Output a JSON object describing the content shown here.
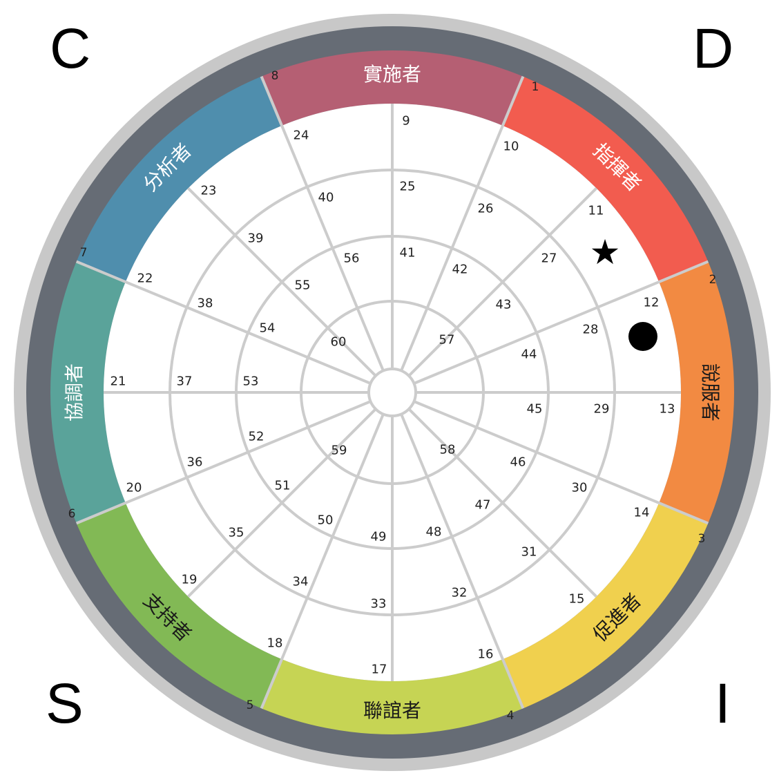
{
  "corners": {
    "top_left": "C",
    "top_right": "D",
    "bottom_left": "S",
    "bottom_right": "I"
  },
  "styles": [
    {
      "name": "實施者",
      "color": "#b55f73",
      "text_color": "#ffffff"
    },
    {
      "name": "指揮者",
      "color": "#f25c4f",
      "text_color": "#ffffff"
    },
    {
      "name": "說服者",
      "color": "#f28a42",
      "text_color": "#1a1a1a"
    },
    {
      "name": "促進者",
      "color": "#f0d04e",
      "text_color": "#1a1a1a"
    },
    {
      "name": "聯誼者",
      "color": "#c6d454",
      "text_color": "#1a1a1a"
    },
    {
      "name": "支持者",
      "color": "#82b955",
      "text_color": "#1a1a1a"
    },
    {
      "name": "協調者",
      "color": "#5aa39a",
      "text_color": "#ffffff"
    },
    {
      "name": "分析者",
      "color": "#4f8ead",
      "text_color": "#ffffff"
    }
  ],
  "rim_numbers": [
    "1",
    "2",
    "3",
    "4",
    "5",
    "6",
    "7",
    "8"
  ],
  "segment_numbers": {
    "ring1": [
      "9",
      "10",
      "11",
      "12",
      "13",
      "14",
      "15",
      "16",
      "17",
      "18",
      "19",
      "20",
      "21",
      "22",
      "23",
      "24"
    ],
    "ring2": [
      "25",
      "26",
      "27",
      "28",
      "29",
      "30",
      "31",
      "32",
      "33",
      "34",
      "35",
      "36",
      "37",
      "38",
      "39",
      "40"
    ],
    "ring3": [
      "41",
      "42",
      "43",
      "44",
      "45",
      "46",
      "47",
      "48",
      "49",
      "50",
      "51",
      "52",
      "53",
      "54",
      "55",
      "56"
    ],
    "ring4": [
      "57",
      "58",
      "59",
      "60"
    ]
  },
  "markers": {
    "star": "★",
    "dot": "●"
  },
  "colors": {
    "outer_ring": "#c8c8c8",
    "dark_ring": "#666c75",
    "grid": "#cccccc"
  }
}
